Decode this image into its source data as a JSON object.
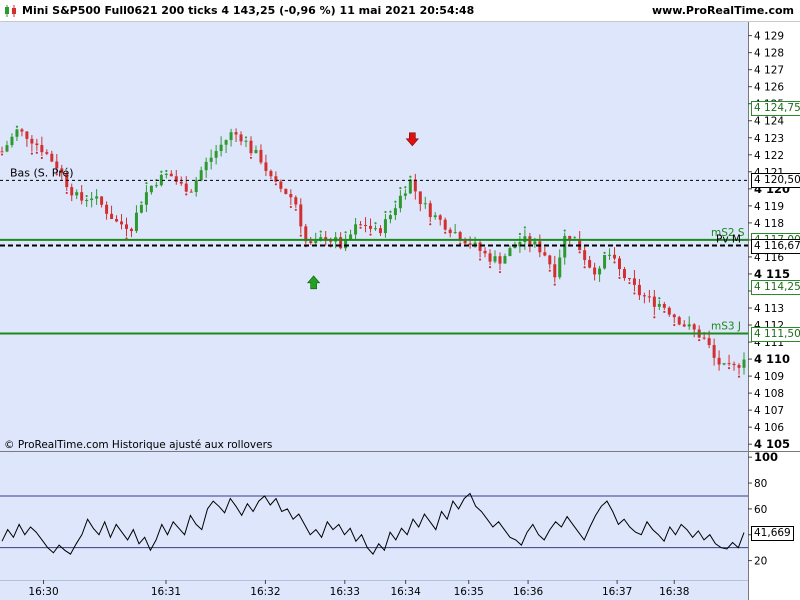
{
  "header": {
    "title": "Mini S&P500 Full0621 200 ticks 4 143,25 (-0,96 %) 11 mai 2021 20:54:48",
    "site": "www.ProRealTime.com",
    "icon": "candlestick-icon"
  },
  "footer_note": "© ProRealTime.com  Historique ajusté aux rollovers",
  "colors": {
    "plot_bg": "#dde6fb",
    "up": "#2e9a2e",
    "down": "#d23030",
    "support": "#1a8a1a",
    "line": "#000000"
  },
  "chart_data": [
    {
      "type": "candlestick",
      "title": "Mini S&P500 Full0621 200 ticks",
      "ylim": [
        4104.6,
        4129.8
      ],
      "y_ticks": [
        "4 129",
        "4 128",
        "4 127",
        "4 126",
        "4 125",
        "4 124",
        "4 123",
        "4 122",
        "4 121",
        "4 120",
        "4 119",
        "4 118",
        "4 117",
        "4 116",
        "4 115",
        "4 114",
        "4 113",
        "4 112",
        "4 111",
        "4 110",
        "4 109",
        "4 108",
        "4 107",
        "4 106",
        "4 105"
      ],
      "y_tick_values": [
        4129,
        4128,
        4127,
        4126,
        4125,
        4124,
        4123,
        4122,
        4121,
        4120,
        4119,
        4118,
        4117,
        4116,
        4115,
        4114,
        4113,
        4112,
        4111,
        4110,
        4109,
        4108,
        4107,
        4106,
        4105
      ],
      "bold_ticks": [
        4120,
        4115,
        4110,
        4105
      ],
      "x_ticks": [
        "16:30",
        "16:31",
        "16:32",
        "16:33",
        "16:34",
        "16:35",
        "16:36",
        "16:37",
        "16:38"
      ],
      "x_tick_fraction": [
        0.056,
        0.221,
        0.355,
        0.462,
        0.544,
        0.629,
        0.709,
        0.829,
        0.906
      ],
      "close_path": [
        [
          0,
          4122.2
        ],
        [
          0.02,
          4123.4
        ],
        [
          0.035,
          4123.1
        ],
        [
          0.055,
          4122.3
        ],
        [
          0.075,
          4121.3
        ],
        [
          0.09,
          4120.1
        ],
        [
          0.105,
          4119.3
        ],
        [
          0.12,
          4119.6
        ],
        [
          0.135,
          4119.0
        ],
        [
          0.155,
          4118.0
        ],
        [
          0.175,
          4117.8
        ],
        [
          0.19,
          4119.5
        ],
        [
          0.205,
          4120.4
        ],
        [
          0.225,
          4120.9
        ],
        [
          0.24,
          4120.2
        ],
        [
          0.255,
          4120.0
        ],
        [
          0.27,
          4121.2
        ],
        [
          0.29,
          4122.3
        ],
        [
          0.31,
          4123.3
        ],
        [
          0.325,
          4123.0
        ],
        [
          0.335,
          4122.3
        ],
        [
          0.35,
          4121.7
        ],
        [
          0.365,
          4120.3
        ],
        [
          0.38,
          4119.9
        ],
        [
          0.395,
          4119.3
        ],
        [
          0.41,
          4116.8
        ],
        [
          0.42,
          4116.6
        ],
        [
          0.435,
          4117.2
        ],
        [
          0.45,
          4116.9
        ],
        [
          0.46,
          4116.5
        ],
        [
          0.475,
          4117.7
        ],
        [
          0.49,
          4117.9
        ],
        [
          0.505,
          4117.4
        ],
        [
          0.52,
          4118.2
        ],
        [
          0.535,
          4119.4
        ],
        [
          0.55,
          4120.5
        ],
        [
          0.565,
          4119.2
        ],
        [
          0.58,
          4118.5
        ],
        [
          0.6,
          4117.8
        ],
        [
          0.615,
          4117.3
        ],
        [
          0.635,
          4116.7
        ],
        [
          0.655,
          4116.0
        ],
        [
          0.67,
          4115.8
        ],
        [
          0.685,
          4116.4
        ],
        [
          0.7,
          4117.0
        ],
        [
          0.715,
          4116.8
        ],
        [
          0.73,
          4116.3
        ],
        [
          0.745,
          4115.1
        ],
        [
          0.76,
          4117.4
        ],
        [
          0.775,
          4116.8
        ],
        [
          0.79,
          4115.6
        ],
        [
          0.805,
          4115.0
        ],
        [
          0.815,
          4116.4
        ],
        [
          0.83,
          4115.3
        ],
        [
          0.845,
          4114.5
        ],
        [
          0.86,
          4113.8
        ],
        [
          0.875,
          4113.4
        ],
        [
          0.89,
          4113.2
        ],
        [
          0.905,
          4112.6
        ],
        [
          0.92,
          4112.0
        ],
        [
          0.935,
          4111.6
        ],
        [
          0.95,
          4111.0
        ],
        [
          0.96,
          4110.0
        ],
        [
          0.975,
          4109.4
        ],
        [
          0.99,
          4109.5
        ],
        [
          1.0,
          4110.2
        ]
      ],
      "levels": [
        {
          "name": "Bas (S. Pré)",
          "value": 4120.5,
          "style": "dashed-thin"
        },
        {
          "name": "mS2 S",
          "value": 4117.0,
          "style": "solid-green"
        },
        {
          "name": "Pv M",
          "value": 4116.67,
          "style": "dashed-bold"
        },
        {
          "name": "mS3 J",
          "value": 4111.5,
          "style": "solid-green"
        }
      ],
      "price_labels": [
        {
          "text": "4 124,75",
          "value": 4124.75,
          "tone": "green"
        },
        {
          "text": "4 120,50",
          "value": 4120.5,
          "tone": "black"
        },
        {
          "text": "4 117,00",
          "value": 4117.0,
          "tone": "green"
        },
        {
          "text": "4 116,67",
          "value": 4116.67,
          "tone": "black"
        },
        {
          "text": "4 114,25",
          "value": 4114.25,
          "tone": "green"
        },
        {
          "text": "4 111,50",
          "value": 4111.5,
          "tone": "green"
        }
      ],
      "signals": [
        {
          "type": "sell-arrow",
          "x": 0.553,
          "value": 4122.0
        },
        {
          "type": "buy-arrow",
          "x": 0.42,
          "value": 4115.3
        }
      ]
    },
    {
      "type": "line",
      "ylim": [
        5,
        104
      ],
      "y_ticks": [
        "100",
        "80",
        "60",
        "40",
        "20"
      ],
      "y_tick_values": [
        100,
        80,
        60,
        40,
        20
      ],
      "bands": [
        70,
        30
      ],
      "current_value_label": "41,669",
      "current_value": 41.669,
      "values": [
        35,
        44,
        38,
        48,
        40,
        46,
        42,
        36,
        30,
        26,
        32,
        28,
        25,
        33,
        40,
        52,
        45,
        40,
        50,
        38,
        48,
        42,
        36,
        44,
        33,
        38,
        28,
        36,
        48,
        40,
        50,
        45,
        40,
        55,
        48,
        44,
        60,
        66,
        62,
        57,
        68,
        62,
        55,
        64,
        58,
        66,
        70,
        63,
        68,
        58,
        60,
        52,
        56,
        48,
        40,
        44,
        38,
        50,
        44,
        48,
        40,
        45,
        35,
        40,
        30,
        25,
        33,
        28,
        42,
        36,
        45,
        40,
        52,
        46,
        56,
        50,
        44,
        58,
        52,
        66,
        60,
        68,
        72,
        62,
        58,
        52,
        46,
        50,
        44,
        38,
        36,
        32,
        42,
        48,
        40,
        36,
        44,
        50,
        46,
        54,
        48,
        42,
        36,
        46,
        55,
        62,
        66,
        58,
        48,
        52,
        46,
        42,
        40,
        50,
        44,
        40,
        35,
        46,
        40,
        48,
        44,
        38,
        43,
        36,
        40,
        33,
        30,
        29,
        34,
        30,
        41.669
      ]
    }
  ]
}
